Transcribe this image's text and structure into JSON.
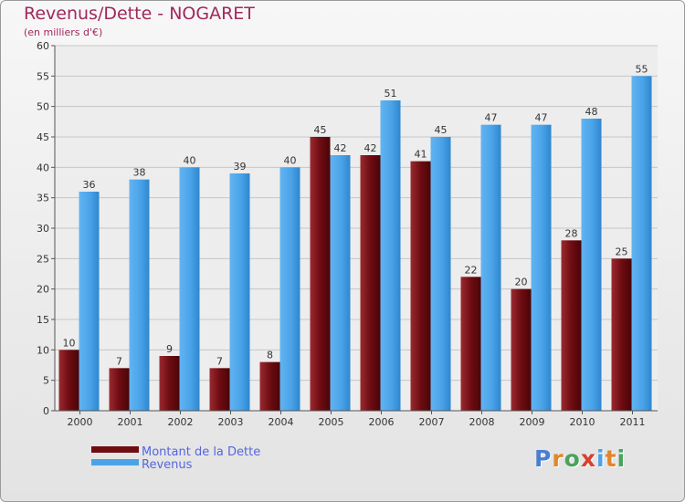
{
  "title": "Revenus/Dette - NOGARET",
  "subtitle": "(en milliers d'€)",
  "logo": "Proxiti",
  "chart_data": {
    "type": "bar",
    "categories": [
      "2000",
      "2001",
      "2002",
      "2003",
      "2004",
      "2005",
      "2006",
      "2007",
      "2008",
      "2009",
      "2010",
      "2011"
    ],
    "series": [
      {
        "name": "Montant de la Dette",
        "color": "#6e0c12",
        "values": [
          10,
          7,
          9,
          7,
          8,
          45,
          42,
          41,
          22,
          20,
          28,
          25
        ]
      },
      {
        "name": "Revenus",
        "color": "#4aa3e8",
        "values": [
          36,
          38,
          40,
          39,
          40,
          42,
          51,
          45,
          47,
          47,
          48,
          55
        ]
      }
    ],
    "ylim": [
      0,
      60
    ],
    "yticks": [
      0,
      5,
      10,
      15,
      20,
      25,
      30,
      35,
      40,
      45,
      50,
      55,
      60
    ],
    "grid": true,
    "legend": "bottom-left"
  }
}
